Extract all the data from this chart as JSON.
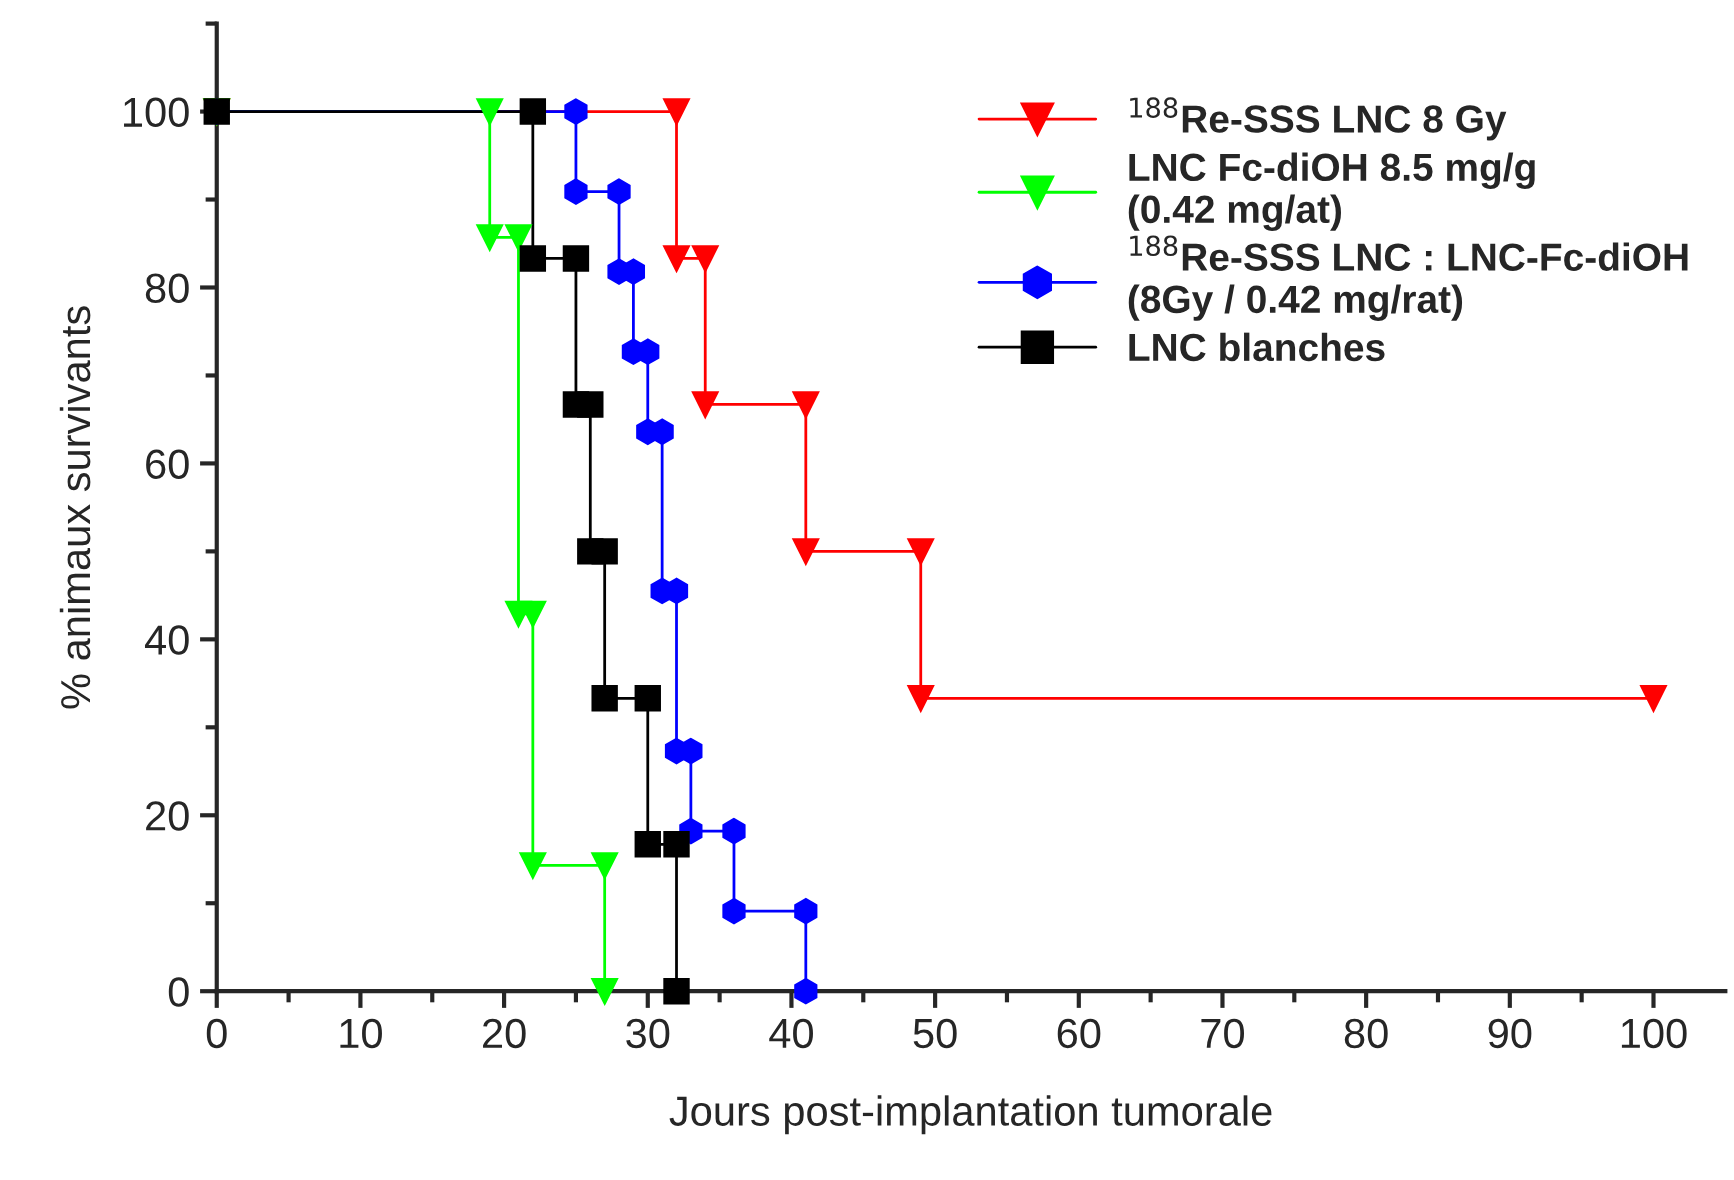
{
  "chart_data": {
    "type": "line",
    "xlabel": "Jours post-implantation tumorale",
    "ylabel": "% animaux survivants",
    "xlim": [
      0,
      105
    ],
    "ylim": [
      0,
      110
    ],
    "xticks": [
      0,
      {
        "value": 5,
        "label": null
      },
      10,
      {
        "value": 15,
        "label": null
      },
      20,
      {
        "value": 25,
        "label": null
      },
      30,
      {
        "value": 35,
        "label": null
      },
      40,
      {
        "value": 45,
        "label": null
      },
      50,
      {
        "value": 55,
        "label": null
      },
      60,
      {
        "value": 65,
        "label": null
      },
      70,
      {
        "value": 75,
        "label": null
      },
      80,
      {
        "value": 85,
        "label": null
      },
      90,
      {
        "value": 95,
        "label": null
      },
      100
    ],
    "yticks": [
      0,
      {
        "value": 10,
        "label": null
      },
      20,
      {
        "value": 30,
        "label": null
      },
      40,
      {
        "value": 50,
        "label": null
      },
      60,
      {
        "value": 70,
        "label": null
      },
      80,
      {
        "value": 90,
        "label": null
      },
      100,
      {
        "value": 110,
        "label": null
      }
    ],
    "grid": false,
    "legend": "top right",
    "line_style": "solid",
    "series": [
      {
        "name": "$^{188}$Re-SSS LNC 8 Gy",
        "color": "#ff0000",
        "marker": "triangle",
        "x": [
          0,
          32,
          32,
          34,
          34,
          41,
          41,
          49,
          49,
          100
        ],
        "values": [
          100,
          100,
          83.3,
          83.3,
          66.7,
          66.7,
          50,
          50,
          33.3,
          33.3
        ]
      },
      {
        "name": "LNC Fc-diOH 8.5 mg/g\n(0.42 mg/at)",
        "color": "#00ff00",
        "marker": "triangle",
        "x": [
          0,
          19,
          19,
          21,
          21,
          22,
          22,
          27,
          27
        ],
        "values": [
          100,
          100,
          85.7,
          85.7,
          42.9,
          42.9,
          14.3,
          14.3,
          0
        ]
      },
      {
        "name": "$^{188}$Re-SSS LNC : LNC-Fc-diOH\n(8Gy / 0.42 mg/rat)",
        "color": "#0000ff",
        "marker": "circle",
        "x": [
          0,
          25,
          25,
          28,
          28,
          29,
          29,
          30,
          30,
          31,
          31,
          32,
          32,
          33,
          33,
          36,
          36,
          41,
          41
        ],
        "values": [
          100,
          100,
          90.9,
          90.9,
          81.8,
          81.8,
          72.7,
          72.7,
          63.6,
          63.6,
          45.5,
          45.5,
          27.3,
          27.3,
          18.2,
          18.2,
          9.1,
          9.1,
          0
        ]
      },
      {
        "name": "LNC blanches",
        "color": "#000000",
        "marker": "square",
        "x": [
          0,
          22,
          22,
          25,
          25,
          26,
          26,
          27,
          27,
          30,
          30,
          32,
          32
        ],
        "values": [
          100,
          100,
          83.3,
          83.3,
          66.7,
          66.7,
          50,
          50,
          33.3,
          33.3,
          16.7,
          16.7,
          0
        ]
      }
    ]
  }
}
